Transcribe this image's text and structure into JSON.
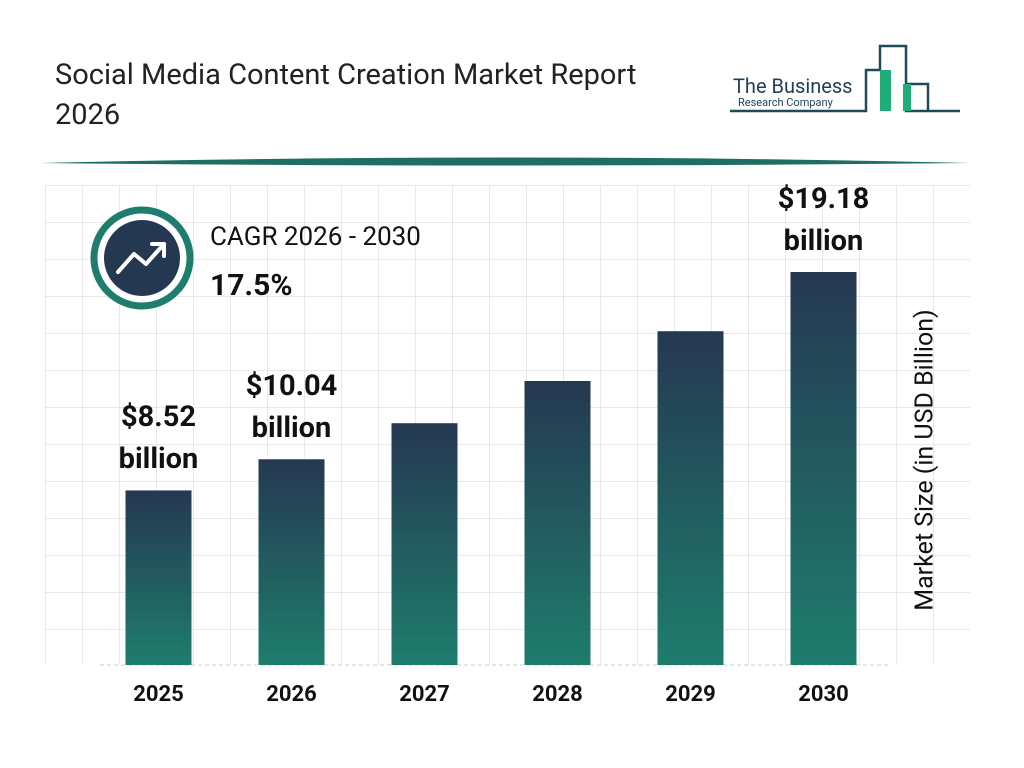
{
  "chart_data": {
    "type": "bar",
    "title": "Social Media Content Creation Market Report 2026",
    "brand": [
      "The Business",
      "Research Company"
    ],
    "cagr_label": "CAGR 2026 - 2030",
    "cagr_value": "17.5%",
    "y_label": "Market Size (in USD Billion)",
    "categories": [
      "2025",
      "2026",
      "2027",
      "2028",
      "2029",
      "2030"
    ],
    "values": [
      8.52,
      10.04,
      11.8,
      13.86,
      16.29,
      19.18
    ],
    "value_labels": [
      "$8.52 billion",
      "$10.04 billion",
      null,
      null,
      null,
      "$19.18 billion"
    ],
    "gradient": [
      "#253852",
      "#1e7d6c"
    ]
  }
}
